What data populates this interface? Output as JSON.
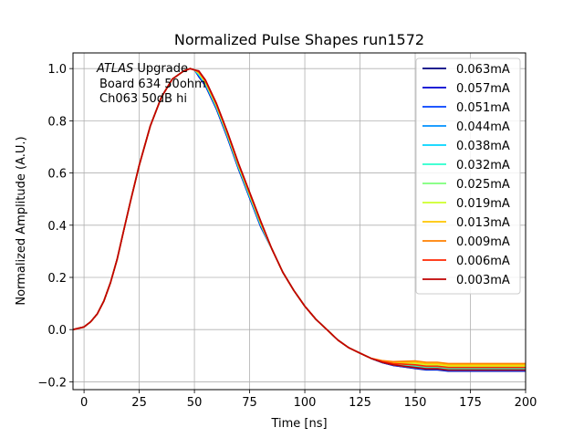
{
  "chart_data": {
    "type": "line",
    "title": "Normalized Pulse Shapes run1572",
    "xlabel": "Time [ns]",
    "ylabel": "Normalized Amplitude (A.U.)",
    "xlim": [
      -5,
      200
    ],
    "ylim": [
      -0.23,
      1.06
    ],
    "xticks": [
      0,
      25,
      50,
      75,
      100,
      125,
      150,
      175,
      200
    ],
    "yticks": [
      -0.2,
      0.0,
      0.2,
      0.4,
      0.6,
      0.8,
      1.0
    ],
    "xtick_labels": [
      "0",
      "25",
      "50",
      "75",
      "100",
      "125",
      "150",
      "175",
      "200"
    ],
    "ytick_labels": [
      "−0.2",
      "0.0",
      "0.2",
      "0.4",
      "0.6",
      "0.8",
      "1.0"
    ],
    "grid": true,
    "legend_position": "top-right",
    "annotation": {
      "italic": "ATLAS",
      "line1_rest": " Upgrade",
      "line2": "Board 634 50ohm",
      "line3": "Ch063 50dB hi"
    },
    "series": [
      {
        "name": "0.063mA",
        "color": "#00007f"
      },
      {
        "name": "0.057mA",
        "color": "#0000d0"
      },
      {
        "name": "0.051mA",
        "color": "#0040ff"
      },
      {
        "name": "0.044mA",
        "color": "#0090ff"
      },
      {
        "name": "0.038mA",
        "color": "#00d4ff"
      },
      {
        "name": "0.032mA",
        "color": "#29ffce"
      },
      {
        "name": "0.025mA",
        "color": "#7dff7a"
      },
      {
        "name": "0.019mA",
        "color": "#ceff29"
      },
      {
        "name": "0.013mA",
        "color": "#ffc400"
      },
      {
        "name": "0.009mA",
        "color": "#ff8000"
      },
      {
        "name": "0.006mA",
        "color": "#ff2600"
      },
      {
        "name": "0.003mA",
        "color": "#c00000"
      }
    ],
    "base_curve": {
      "x": [
        -5,
        0,
        3,
        6,
        9,
        12,
        15,
        18,
        21,
        25,
        30,
        35,
        40,
        45,
        48,
        50,
        52,
        55,
        60,
        65,
        70,
        75,
        80,
        85,
        90,
        95,
        100,
        105,
        110,
        115,
        120,
        125,
        130,
        135,
        140,
        145,
        150,
        155,
        160,
        165,
        170,
        175,
        180,
        185,
        190,
        195,
        200
      ],
      "y": [
        0.0,
        0.01,
        0.03,
        0.06,
        0.11,
        0.18,
        0.27,
        0.38,
        0.49,
        0.63,
        0.78,
        0.89,
        0.96,
        0.99,
        1.0,
        0.995,
        0.985,
        0.95,
        0.86,
        0.75,
        0.63,
        0.52,
        0.41,
        0.31,
        0.22,
        0.15,
        0.09,
        0.04,
        0.0,
        -0.04,
        -0.07,
        -0.09,
        -0.11,
        -0.125,
        -0.135,
        -0.14,
        -0.145,
        -0.15,
        -0.15,
        -0.155,
        -0.155,
        -0.155,
        -0.155,
        -0.155,
        -0.155,
        -0.155,
        -0.155
      ]
    },
    "tail_offsets": [
      -0.004,
      -0.003,
      -0.002,
      0.0,
      0.003,
      0.006,
      0.01,
      0.015,
      0.02,
      0.025,
      0.01,
      0.0
    ]
  }
}
